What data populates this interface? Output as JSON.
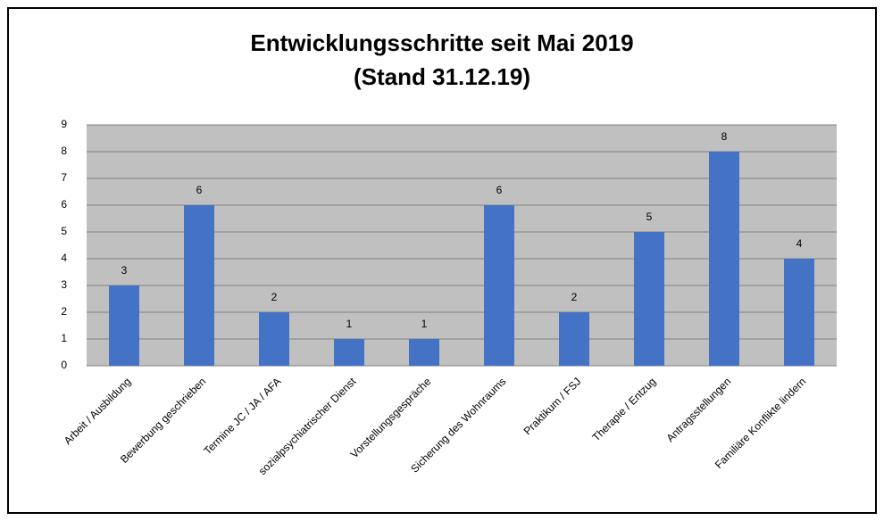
{
  "chart_data": {
    "type": "bar",
    "title": "Entwicklungsschritte seit Mai 2019",
    "subtitle": "(Stand 31.12.19)",
    "categories": [
      "Arbeit / Ausbildung",
      "Bewerbung geschrieben",
      "Termine JC / JA / AFA",
      "sozialpsychiatrischer Dienst",
      "Vorstellungsgespräche",
      "Sicherung des Wohnraums",
      "Praktikum / FSJ",
      "Therapie / Entzug",
      "Antragsstellungen",
      "Familiäre Konflikte lindern"
    ],
    "values": [
      3,
      6,
      2,
      1,
      1,
      6,
      2,
      5,
      8,
      4
    ],
    "color": "#4472c4",
    "ylim": [
      0,
      9
    ],
    "yticks": [
      0,
      1,
      2,
      3,
      4,
      5,
      6,
      7,
      8,
      9
    ],
    "grid": true
  }
}
